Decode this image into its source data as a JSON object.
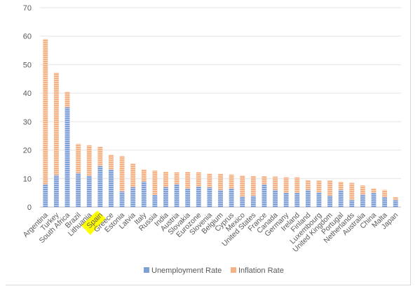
{
  "chart_data": {
    "type": "bar",
    "stacked": true,
    "categories": [
      "Argentina",
      "Turkey",
      "South Africa",
      "Brazil",
      "Lithuania",
      "Spain",
      "Greece",
      "Estonia",
      "Latvia",
      "Italy",
      "Russia",
      "India",
      "Austria",
      "Slovakia",
      "Eurozone",
      "Slovenia",
      "Belgium",
      "Cyprus",
      "Mexico",
      "United States",
      "France",
      "Canada",
      "Germany",
      "Ireland",
      "Finland",
      "Luxembourg",
      "United Kingdom",
      "Portugal",
      "Netherlands",
      "Australia",
      "China",
      "Malta",
      "Japan"
    ],
    "series": [
      {
        "name": "Unemployment Rate",
        "color": "#7f9fd8",
        "values": [
          8.0,
          11.2,
          35.0,
          11.9,
          11.0,
          14.4,
          13.2,
          5.5,
          7.0,
          9.0,
          4.2,
          7.0,
          8.0,
          6.5,
          7.2,
          6.9,
          6.0,
          6.5,
          3.7,
          3.9,
          7.9,
          6.0,
          5.0,
          5.0,
          6.0,
          5.2,
          4.0,
          6.0,
          2.5,
          4.4,
          5.0,
          3.5,
          2.5
        ]
      },
      {
        "name": "Inflation Rate",
        "color": "#f5b184",
        "values": [
          51.0,
          36.0,
          5.5,
          10.3,
          10.7,
          6.8,
          5.2,
          12.4,
          8.2,
          4.2,
          8.6,
          5.4,
          4.2,
          5.8,
          5.0,
          4.9,
          5.7,
          4.9,
          7.4,
          7.0,
          2.9,
          4.7,
          5.5,
          5.5,
          3.4,
          4.1,
          5.3,
          2.9,
          6.0,
          3.2,
          1.5,
          2.5,
          1.0
        ]
      }
    ],
    "yticks": [
      0,
      10,
      20,
      30,
      40,
      50,
      60,
      70
    ],
    "ylim": [
      0,
      70
    ],
    "grid": true,
    "legend_position": "bottom",
    "highlight": {
      "category": "Spain",
      "color": "#ffff00"
    }
  }
}
